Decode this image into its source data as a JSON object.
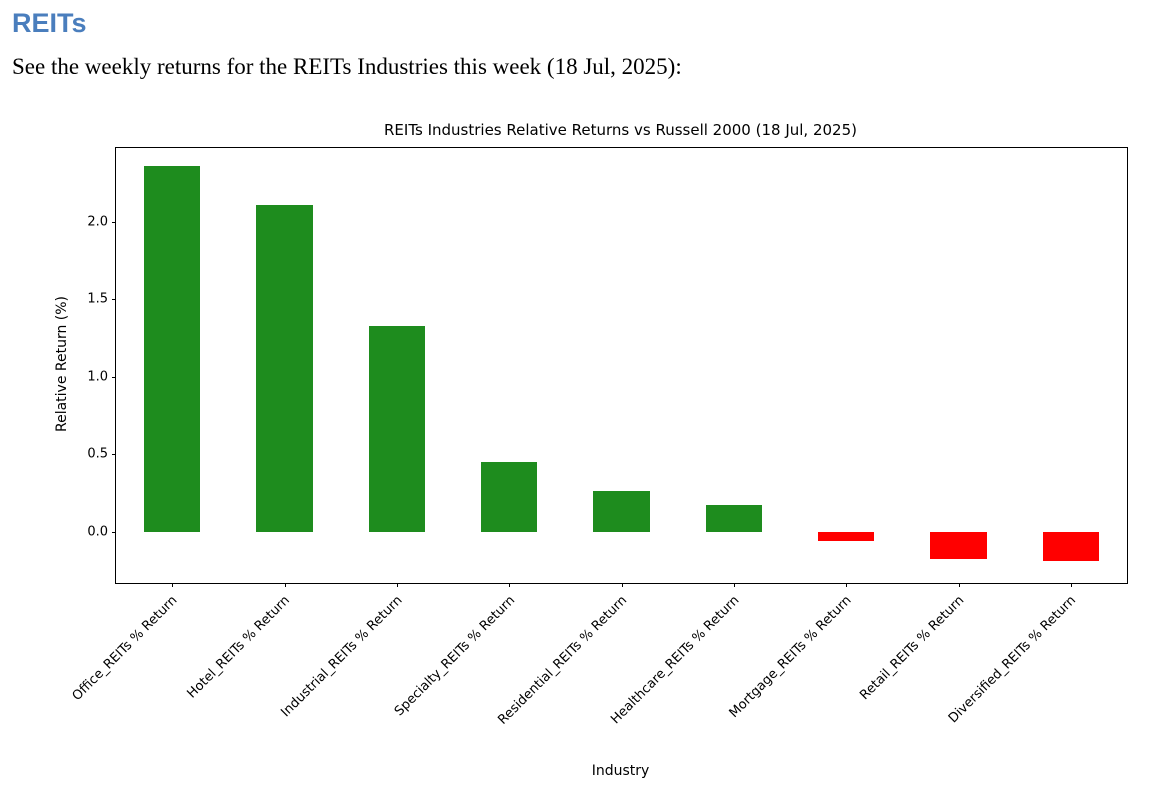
{
  "page": {
    "heading": "REITs",
    "intro": "See the weekly returns for the REITs Industries this week (18 Jul, 2025):"
  },
  "colors": {
    "heading": "#4a7ebd",
    "positive_bar": "#1e8c1e",
    "negative_bar": "#ff0000"
  },
  "chart_data": {
    "type": "bar",
    "title": "REITs Industries Relative Returns vs Russell 2000 (18 Jul, 2025)",
    "xlabel": "Industry",
    "ylabel": "Relative Return (%)",
    "categories": [
      "Office_REITs % Return",
      "Hotel_REITs % Return",
      "Industrial_REITs % Return",
      "Specialty_REITs % Return",
      "Residential_REITs % Return",
      "Healthcare_REITs % Return",
      "Mortgage_REITs % Return",
      "Retail_REITs % Return",
      "Diversified_REITs % Return"
    ],
    "values": [
      2.36,
      2.11,
      1.33,
      0.45,
      0.26,
      0.17,
      -0.06,
      -0.18,
      -0.19
    ],
    "yticks": [
      0.0,
      0.5,
      1.0,
      1.5,
      2.0
    ],
    "ylim": [
      -0.33,
      2.48
    ],
    "grid": false,
    "legend": "none",
    "bar_width_fraction": 0.5
  }
}
